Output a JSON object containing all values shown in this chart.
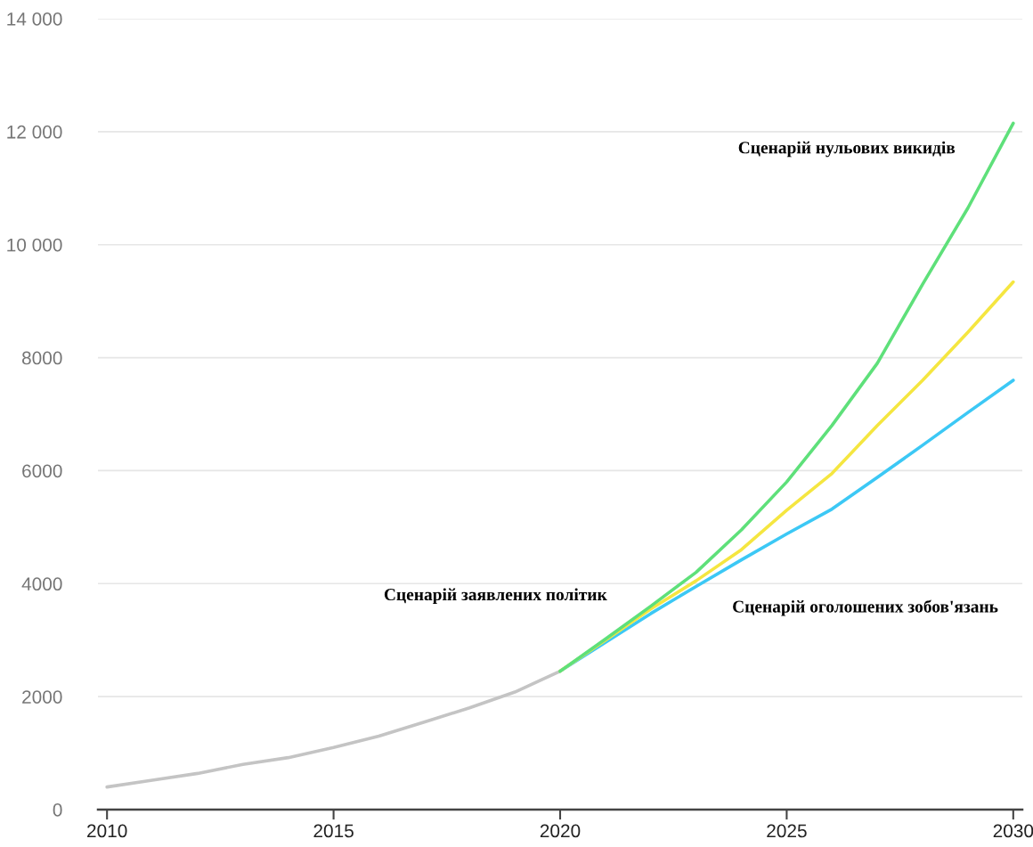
{
  "chart_data": {
    "type": "line",
    "series": [
      {
        "color": "#c4c4c4",
        "x": [
          2010,
          2011,
          2012,
          2013,
          2014,
          2015,
          2016,
          2017,
          2018,
          2019,
          2020
        ],
        "values": [
          400,
          520,
          640,
          800,
          920,
          1100,
          1300,
          1550,
          1800,
          2080,
          2450
        ]
      },
      {
        "color": "#3cc8f5",
        "x": [
          2020,
          2021,
          2022,
          2023,
          2024,
          2025,
          2026,
          2027,
          2028,
          2029,
          2030
        ],
        "values": [
          2450,
          2960,
          3470,
          3950,
          4420,
          4880,
          5320,
          5880,
          6450,
          7030,
          7600
        ]
      },
      {
        "color": "#f5e640",
        "x": [
          2020,
          2021,
          2022,
          2023,
          2024,
          2025,
          2026,
          2027,
          2028,
          2029,
          2030
        ],
        "values": [
          2450,
          3000,
          3550,
          4050,
          4600,
          5300,
          5950,
          6800,
          7600,
          8450,
          9340
        ]
      },
      {
        "color": "#5ee07a",
        "x": [
          2020,
          2021,
          2022,
          2023,
          2024,
          2025,
          2026,
          2027,
          2028,
          2029,
          2030
        ],
        "values": [
          2450,
          3020,
          3600,
          4200,
          4950,
          5800,
          6800,
          7900,
          9300,
          10650,
          12150
        ]
      }
    ],
    "annotations": [
      "Сценарій заявлених політик",
      "Сценарій нульових викидів",
      "Сценарій оголошених зобов'язань"
    ],
    "xlim": [
      2009.8,
      2030.2
    ],
    "xticks": [
      2010,
      2015,
      2020,
      2025,
      2030
    ],
    "ylim": [
      0,
      14000
    ],
    "yticks": [
      0,
      2000,
      4000,
      6000,
      8000,
      {
        "value": 10000,
        "label": "10 000"
      },
      {
        "value": 12000,
        "label": "12 000"
      },
      {
        "value": 14000,
        "label": "14 000"
      }
    ],
    "grid": "y",
    "line_style": "solid",
    "marker": "none"
  }
}
